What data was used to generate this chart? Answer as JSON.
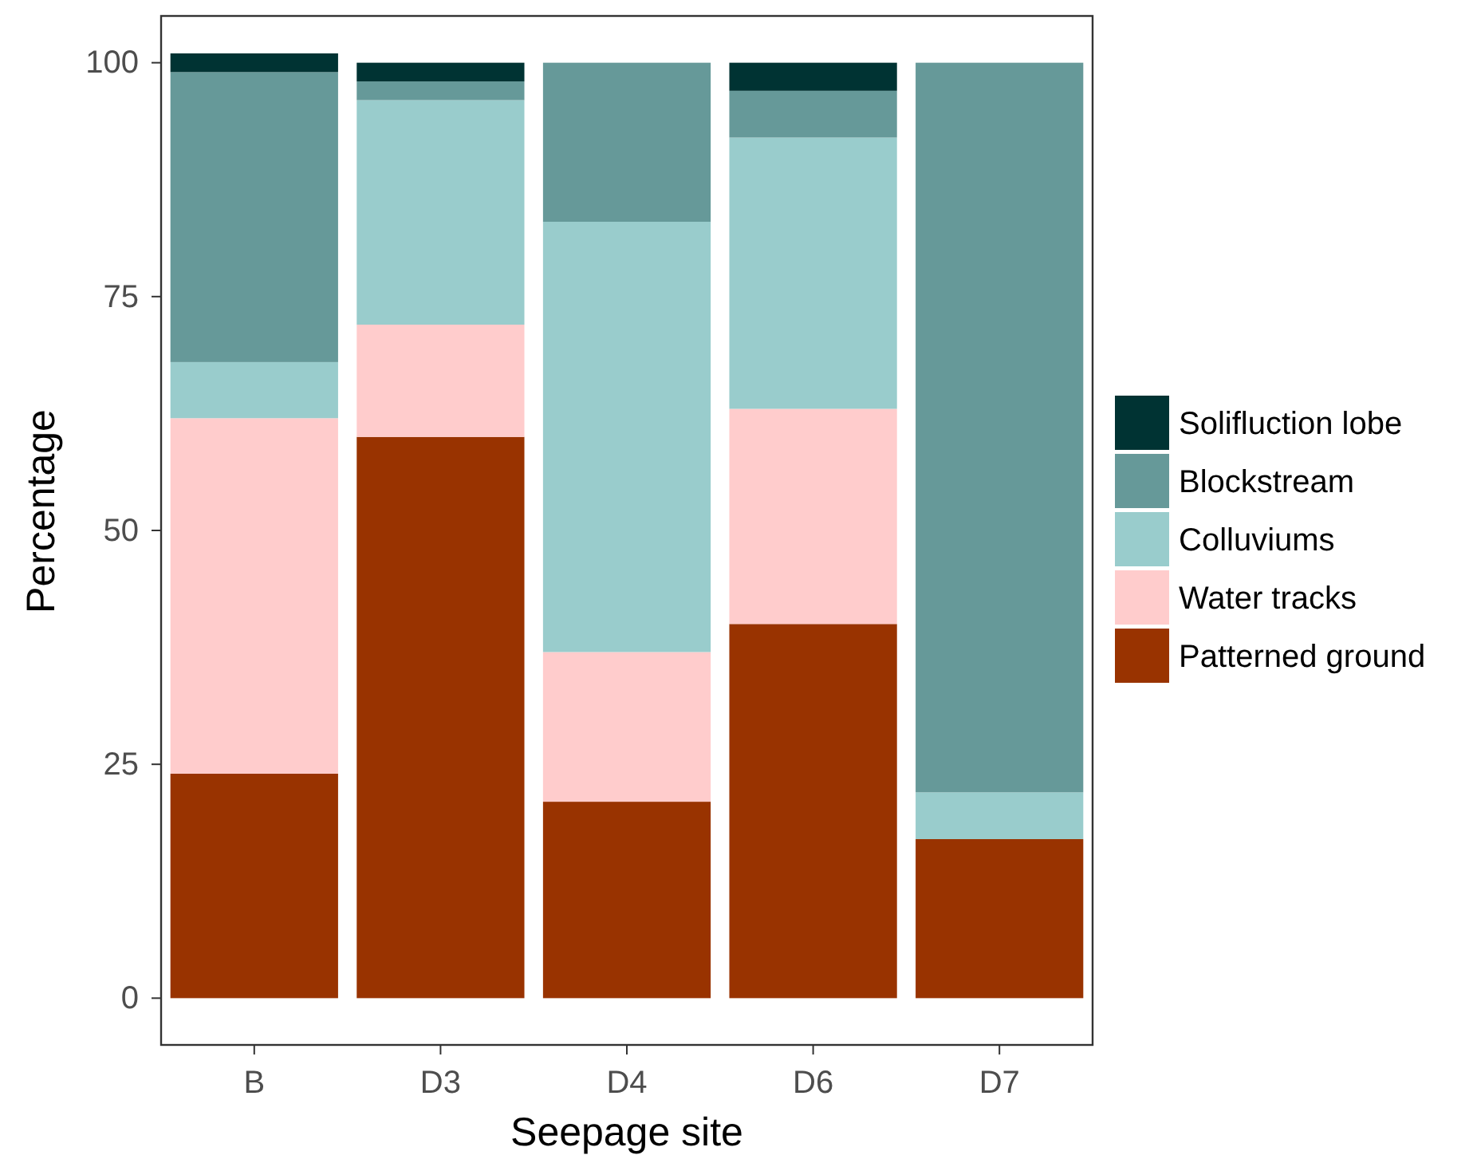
{
  "chart_data": {
    "type": "bar",
    "stacked": true,
    "xlabel": "Seepage site",
    "ylabel": "Percentage",
    "categories": [
      "B",
      "D3",
      "D4",
      "D6",
      "D7"
    ],
    "ylim": [
      -5,
      105
    ],
    "yticks": [
      0,
      25,
      50,
      75,
      100
    ],
    "grid": false,
    "legend": "right",
    "series": [
      {
        "name": "Patterned ground",
        "color": "#993300",
        "values": [
          24,
          60,
          21,
          40,
          17
        ]
      },
      {
        "name": "Water tracks",
        "color": "#ffcccc",
        "values": [
          38,
          12,
          16,
          23,
          0
        ]
      },
      {
        "name": "Colluviums",
        "color": "#99cccc",
        "values": [
          6,
          24,
          46,
          29,
          5
        ]
      },
      {
        "name": "Blockstream",
        "color": "#669999",
        "values": [
          31,
          2,
          17,
          5,
          78
        ]
      },
      {
        "name": "Solifluction lobe",
        "color": "#003333",
        "values": [
          2,
          2,
          0,
          3,
          0
        ]
      }
    ]
  }
}
